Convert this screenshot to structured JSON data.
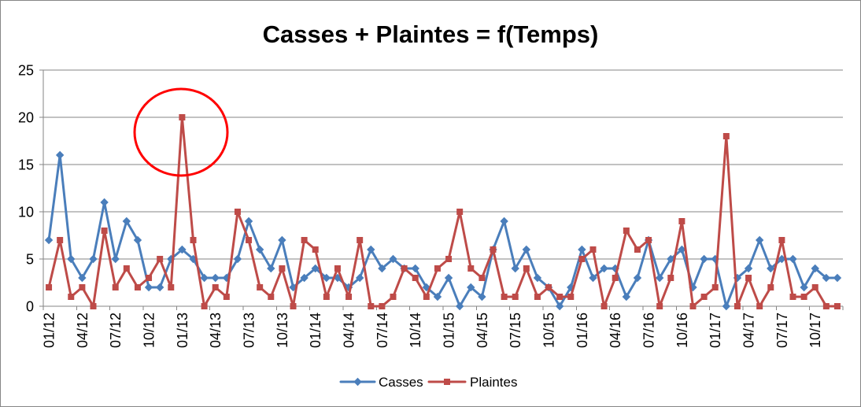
{
  "chart_data": {
    "type": "line",
    "title": "Casses + Plaintes = f(Temps)",
    "x_tick_labels": [
      "01/12",
      "04/12",
      "07/12",
      "10/12",
      "01/13",
      "04/13",
      "07/13",
      "10/13",
      "01/14",
      "04/14",
      "07/14",
      "10/14",
      "01/15",
      "04/15",
      "07/15",
      "10/15",
      "01/16",
      "04/16",
      "07/16",
      "10/16",
      "01/17",
      "04/17",
      "07/17",
      "10/17"
    ],
    "ylim": [
      0,
      25
    ],
    "y_ticks": [
      0,
      5,
      10,
      15,
      20,
      25
    ],
    "grid_y": true,
    "legend_position": "bottom",
    "annotation_color": "#ff0000",
    "series": [
      {
        "name": "Casses",
        "color": "#4a7ebb",
        "marker": "diamond",
        "values": [
          7,
          16,
          5,
          3,
          5,
          11,
          5,
          9,
          7,
          2,
          2,
          5,
          6,
          5,
          3,
          3,
          3,
          5,
          9,
          6,
          4,
          7,
          2,
          3,
          4,
          3,
          3,
          2,
          3,
          6,
          4,
          5,
          4,
          4,
          2,
          1,
          3,
          0,
          2,
          1,
          6,
          9,
          4,
          6,
          3,
          2,
          0,
          2,
          6,
          3,
          4,
          4,
          1,
          3,
          7,
          3,
          5,
          6,
          2,
          5,
          5,
          0,
          3,
          4,
          7,
          4,
          5,
          5,
          2,
          4,
          3,
          3
        ]
      },
      {
        "name": "Plaintes",
        "color": "#be4b48",
        "marker": "square",
        "values": [
          2,
          7,
          1,
          2,
          0,
          8,
          2,
          4,
          2,
          3,
          5,
          2,
          20,
          7,
          0,
          2,
          1,
          10,
          7,
          2,
          1,
          4,
          0,
          7,
          6,
          1,
          4,
          1,
          7,
          0,
          0,
          1,
          4,
          3,
          1,
          4,
          5,
          10,
          4,
          3,
          6,
          1,
          1,
          4,
          1,
          2,
          1,
          1,
          5,
          6,
          0,
          3,
          8,
          6,
          7,
          0,
          3,
          9,
          0,
          1,
          2,
          18,
          0,
          3,
          0,
          2,
          7,
          1,
          1,
          2,
          0,
          0
        ]
      }
    ]
  }
}
